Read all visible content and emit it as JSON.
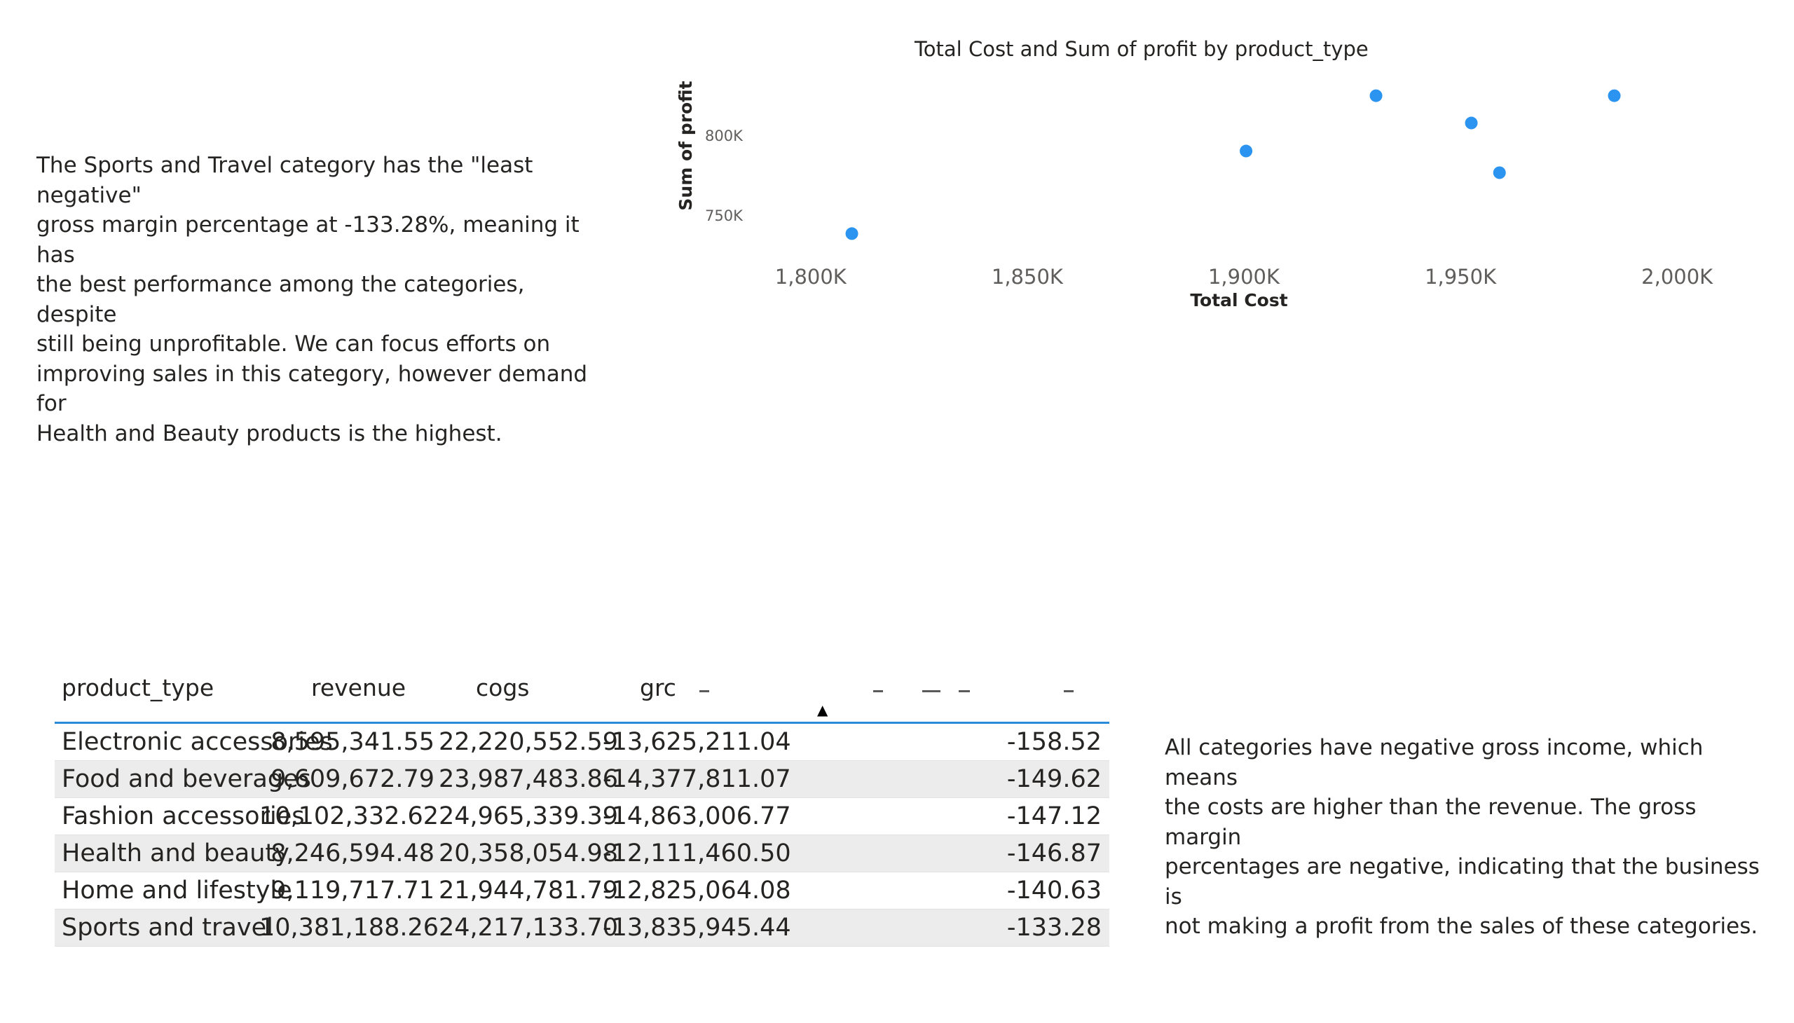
{
  "notes": {
    "left": "The Sports and Travel category has the \"least negative\"\ngross margin percentage at -133.28%, meaning it has\nthe best performance among the categories, despite\nstill being unprofitable. We can focus efforts on\nimproving sales in this category, however demand for\nHealth and Beauty products is the highest.",
    "right": "All categories have negative gross income, which means\nthe costs are higher than the revenue. The gross margin\npercentages are negative, indicating that the business is\nnot making a profit from the sales of these categories."
  },
  "chart_data": {
    "type": "scatter",
    "title": "Total Cost and Sum of profit by product_type",
    "xlabel": "Total Cost",
    "ylabel": "Sum of profit",
    "xlim": [
      1790000,
      2010000
    ],
    "ylim": [
      723000,
      841000
    ],
    "x_ticks": [
      {
        "value": 1800000,
        "label": "1,800K"
      },
      {
        "value": 1850000,
        "label": "1,850K"
      },
      {
        "value": 1900000,
        "label": "1,900K"
      },
      {
        "value": 1950000,
        "label": "1,950K"
      },
      {
        "value": 2000000,
        "label": "2,000K"
      }
    ],
    "y_ticks": [
      {
        "value": 750000,
        "label": "750K"
      },
      {
        "value": 800000,
        "label": "800K"
      }
    ],
    "points": [
      {
        "x": 1809500,
        "y": 739000
      },
      {
        "x": 1900500,
        "y": 790500
      },
      {
        "x": 1930500,
        "y": 825000
      },
      {
        "x": 1952500,
        "y": 808000
      },
      {
        "x": 1959000,
        "y": 777000
      },
      {
        "x": 1985500,
        "y": 825000
      }
    ],
    "color": "#2a94f0"
  },
  "table": {
    "headers": {
      "product_type": "product_type",
      "revenue": "revenue",
      "cogs": "cogs",
      "grc": "grc"
    },
    "sort_indicator": "▲",
    "rows": [
      {
        "product_type": "Electronic accessories",
        "revenue": "8,595,341.55",
        "cogs": "22,220,552.59",
        "grc": "-13,625,211.04",
        "gross_margin_pct": "-158.52"
      },
      {
        "product_type": "Food and beverages",
        "revenue": "9,609,672.79",
        "cogs": "23,987,483.86",
        "grc": "-14,377,811.07",
        "gross_margin_pct": "-149.62"
      },
      {
        "product_type": "Fashion accessories",
        "revenue": "10,102,332.62",
        "cogs": "24,965,339.39",
        "grc": "-14,863,006.77",
        "gross_margin_pct": "-147.12"
      },
      {
        "product_type": "Health and beauty",
        "revenue": "8,246,594.48",
        "cogs": "20,358,054.98",
        "grc": "-12,111,460.50",
        "gross_margin_pct": "-146.87"
      },
      {
        "product_type": "Home and lifestyle",
        "revenue": "9,119,717.71",
        "cogs": "21,944,781.79",
        "grc": "-12,825,064.08",
        "gross_margin_pct": "-140.63"
      },
      {
        "product_type": "Sports and travel",
        "revenue": "10,381,188.26",
        "cogs": "24,217,133.70",
        "grc": "-13,835,945.44",
        "gross_margin_pct": "-133.28"
      }
    ]
  }
}
